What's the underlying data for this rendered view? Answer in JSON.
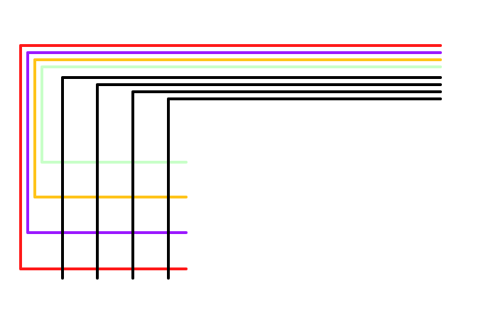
{
  "colors": {
    "background": "#ffffff",
    "red": "#ff1a1a",
    "purple": "#9b19ff",
    "orange": "#ffc41a",
    "light_green": "#c8ffc8",
    "black": "#000000"
  },
  "wires": [
    {
      "name": "red-wire",
      "color_key": "red"
    },
    {
      "name": "purple-wire",
      "color_key": "purple"
    },
    {
      "name": "orange-wire",
      "color_key": "orange"
    },
    {
      "name": "light-green-wire",
      "color_key": "light_green"
    },
    {
      "name": "black-wire-1",
      "color_key": "black"
    },
    {
      "name": "black-wire-2",
      "color_key": "black"
    },
    {
      "name": "black-wire-3",
      "color_key": "black"
    },
    {
      "name": "black-wire-4",
      "color_key": "black"
    }
  ]
}
